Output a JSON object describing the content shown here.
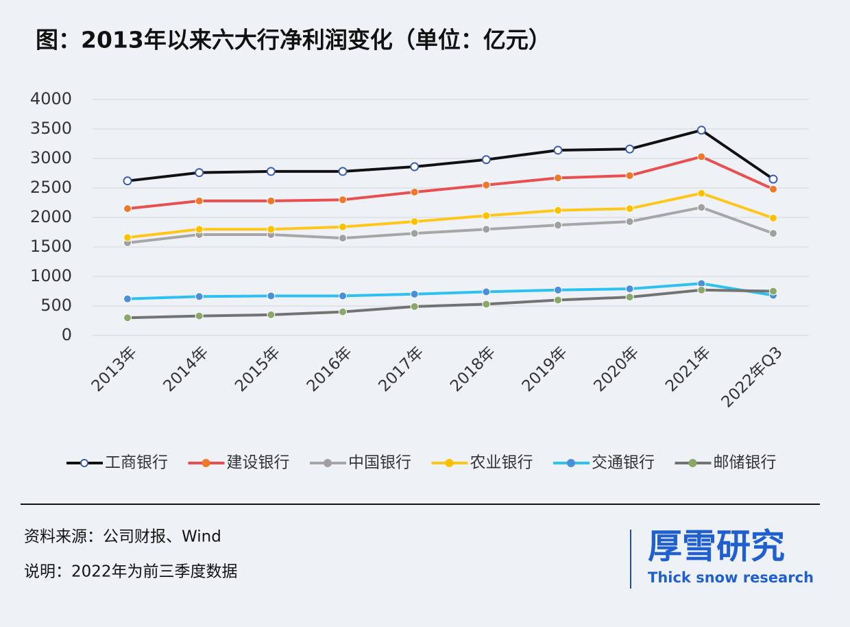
{
  "chart_data": {
    "type": "line",
    "title": "图：2013年以来六大行净利润变化（单位：亿元）",
    "categories": [
      "2013年",
      "2014年",
      "2015年",
      "2016年",
      "2017年",
      "2018年",
      "2019年",
      "2020年",
      "2021年",
      "2022年Q3"
    ],
    "series": [
      {
        "name": "工商银行",
        "color": "#111111",
        "marker_color": "#3a5bb0",
        "values": [
          2620,
          2760,
          2780,
          2780,
          2860,
          2980,
          3140,
          3160,
          3480,
          2650
        ]
      },
      {
        "name": "建设银行",
        "color": "#ea4f4f",
        "marker_color": "#f0782a",
        "values": [
          2150,
          2280,
          2280,
          2300,
          2430,
          2550,
          2670,
          2710,
          3030,
          2480
        ]
      },
      {
        "name": "中国银行",
        "color": "#a6a6a6",
        "marker_color": "#a0a0a0",
        "values": [
          1570,
          1710,
          1710,
          1650,
          1730,
          1800,
          1870,
          1930,
          2170,
          1730
        ]
      },
      {
        "name": "农业银行",
        "color": "#ffc61a",
        "marker_color": "#ffc000",
        "values": [
          1660,
          1800,
          1800,
          1840,
          1930,
          2030,
          2120,
          2150,
          2410,
          1990
        ]
      },
      {
        "name": "交通银行",
        "color": "#2ec0f0",
        "marker_color": "#4a90d9",
        "values": [
          620,
          660,
          670,
          670,
          700,
          740,
          770,
          790,
          880,
          680
        ]
      },
      {
        "name": "邮储银行",
        "color": "#737373",
        "marker_color": "#8aa86a",
        "values": [
          300,
          330,
          350,
          400,
          490,
          530,
          600,
          650,
          770,
          750
        ]
      }
    ],
    "ylim": [
      0,
      4000
    ],
    "yticks": [
      0,
      500,
      1000,
      1500,
      2000,
      2500,
      3000,
      3500,
      4000
    ],
    "grid": true,
    "source": "资料来源：公司财报、Wind",
    "note": "说明：2022年为前三季度数据",
    "brand": "厚雪研究",
    "brand_en": "Thick snow research"
  }
}
